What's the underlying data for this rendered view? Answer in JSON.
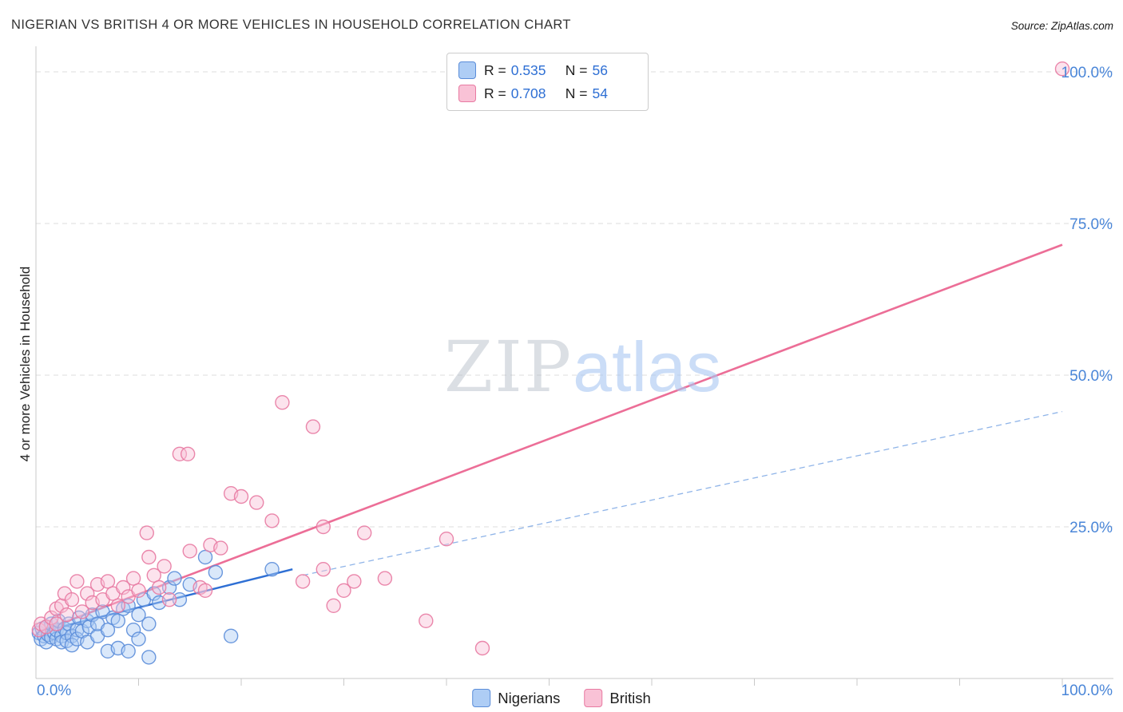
{
  "header": {
    "title": "NIGERIAN VS BRITISH 4 OR MORE VEHICLES IN HOUSEHOLD CORRELATION CHART",
    "source": "Source: ZipAtlas.com"
  },
  "watermark": {
    "zip": "ZIP",
    "atlas": "atlas"
  },
  "legend_box": {
    "rows": [
      {
        "r_label": "R =",
        "r_value": "0.535",
        "n_label": "N =",
        "n_value": "56"
      },
      {
        "r_label": "R =",
        "r_value": "0.708",
        "n_label": "N =",
        "n_value": "54"
      }
    ]
  },
  "axes": {
    "y_axis_title": "4 or more Vehicles in Household",
    "y_ticks": [
      {
        "pct": 100,
        "label": "100.0%"
      },
      {
        "pct": 75,
        "label": "75.0%"
      },
      {
        "pct": 50,
        "label": "50.0%"
      },
      {
        "pct": 25,
        "label": "25.0%"
      }
    ],
    "x_ticks": [
      {
        "pct": 0,
        "label": "0.0%",
        "anchor": "start"
      },
      {
        "pct": 100,
        "label": "100.0%",
        "anchor": "end"
      }
    ]
  },
  "bottom_legend": {
    "items": [
      {
        "label": "Nigerians"
      },
      {
        "label": "British"
      }
    ]
  },
  "chart_data": {
    "type": "scatter",
    "title": "NIGERIAN VS BRITISH 4 OR MORE VEHICLES IN HOUSEHOLD CORRELATION CHART",
    "xlabel": "",
    "ylabel": "4 or more Vehicles in Household",
    "xlim": [
      0,
      100
    ],
    "ylim": [
      0,
      105
    ],
    "grid_y": [
      25,
      50,
      75,
      100
    ],
    "x_minor_tick_step": 10,
    "legend_position": "bottom-center",
    "series": [
      {
        "name": "Nigerians",
        "R": 0.535,
        "N": 56,
        "fill": "#aecdf5",
        "stroke": "#5b8dd9",
        "points": [
          [
            0.3,
            7.5
          ],
          [
            0.5,
            6.5
          ],
          [
            0.6,
            8.2
          ],
          [
            0.8,
            7.0
          ],
          [
            1.0,
            6.0
          ],
          [
            1.0,
            8.5
          ],
          [
            1.2,
            7.2
          ],
          [
            1.5,
            6.8
          ],
          [
            1.5,
            9.0
          ],
          [
            1.8,
            7.5
          ],
          [
            2.0,
            6.5
          ],
          [
            2.0,
            8.0
          ],
          [
            2.2,
            9.5
          ],
          [
            2.5,
            7.0
          ],
          [
            2.5,
            6.0
          ],
          [
            2.8,
            8.2
          ],
          [
            3.0,
            7.5
          ],
          [
            3.0,
            6.2
          ],
          [
            3.2,
            9.0
          ],
          [
            3.5,
            7.0
          ],
          [
            3.5,
            5.5
          ],
          [
            4.0,
            8.0
          ],
          [
            4.0,
            6.5
          ],
          [
            4.2,
            10.0
          ],
          [
            4.5,
            7.8
          ],
          [
            5.0,
            9.5
          ],
          [
            5.0,
            6.0
          ],
          [
            5.2,
            8.5
          ],
          [
            5.5,
            10.5
          ],
          [
            6.0,
            7.0
          ],
          [
            6.0,
            9.0
          ],
          [
            6.5,
            11.0
          ],
          [
            7.0,
            4.5
          ],
          [
            7.0,
            8.0
          ],
          [
            7.5,
            10.0
          ],
          [
            8.0,
            5.0
          ],
          [
            8.0,
            9.5
          ],
          [
            8.5,
            11.5
          ],
          [
            9.0,
            4.5
          ],
          [
            9.0,
            12.0
          ],
          [
            9.5,
            8.0
          ],
          [
            10.0,
            10.5
          ],
          [
            10.0,
            6.5
          ],
          [
            10.5,
            13.0
          ],
          [
            11.0,
            3.5
          ],
          [
            11.0,
            9.0
          ],
          [
            11.5,
            14.0
          ],
          [
            12.0,
            12.5
          ],
          [
            13.0,
            15.0
          ],
          [
            13.5,
            16.5
          ],
          [
            14.0,
            13.0
          ],
          [
            15.0,
            15.5
          ],
          [
            16.5,
            20.0
          ],
          [
            17.5,
            17.5
          ],
          [
            19.0,
            7.0
          ],
          [
            23.0,
            18.0
          ]
        ]
      },
      {
        "name": "British",
        "R": 0.708,
        "N": 54,
        "fill": "#f9c2d6",
        "stroke": "#e87aa2",
        "points": [
          [
            0.3,
            8.0
          ],
          [
            0.5,
            9.0
          ],
          [
            1.0,
            8.5
          ],
          [
            1.5,
            10.0
          ],
          [
            2.0,
            9.0
          ],
          [
            2.0,
            11.5
          ],
          [
            2.5,
            12.0
          ],
          [
            2.8,
            14.0
          ],
          [
            3.0,
            10.5
          ],
          [
            3.5,
            13.0
          ],
          [
            4.0,
            16.0
          ],
          [
            4.5,
            11.0
          ],
          [
            5.0,
            14.0
          ],
          [
            5.5,
            12.5
          ],
          [
            6.0,
            15.5
          ],
          [
            6.5,
            13.0
          ],
          [
            7.0,
            16.0
          ],
          [
            7.5,
            14.0
          ],
          [
            8.0,
            12.0
          ],
          [
            8.5,
            15.0
          ],
          [
            9.0,
            13.5
          ],
          [
            9.5,
            16.5
          ],
          [
            10.0,
            14.5
          ],
          [
            10.8,
            24.0
          ],
          [
            11.0,
            20.0
          ],
          [
            11.5,
            17.0
          ],
          [
            12.0,
            15.0
          ],
          [
            12.5,
            18.5
          ],
          [
            13.0,
            13.0
          ],
          [
            14.0,
            37.0
          ],
          [
            14.8,
            37.0
          ],
          [
            15.0,
            21.0
          ],
          [
            16.0,
            15.0
          ],
          [
            16.5,
            14.5
          ],
          [
            17.0,
            22.0
          ],
          [
            18.0,
            21.5
          ],
          [
            19.0,
            30.5
          ],
          [
            20.0,
            30.0
          ],
          [
            21.5,
            29.0
          ],
          [
            23.0,
            26.0
          ],
          [
            24.0,
            45.5
          ],
          [
            26.0,
            16.0
          ],
          [
            27.0,
            41.5
          ],
          [
            28.0,
            25.0
          ],
          [
            28.0,
            18.0
          ],
          [
            29.0,
            12.0
          ],
          [
            30.0,
            14.5
          ],
          [
            31.0,
            16.0
          ],
          [
            32.0,
            24.0
          ],
          [
            34.0,
            16.5
          ],
          [
            38.0,
            9.5
          ],
          [
            40.0,
            23.0
          ],
          [
            43.5,
            5.0
          ],
          [
            100.0,
            100.5
          ]
        ]
      }
    ],
    "trends": [
      {
        "series": "Nigerians",
        "x1": 0,
        "y1": 7.5,
        "x2": 25,
        "y2": 18,
        "dash": false,
        "color": "#2e6fd4",
        "width": 2.4
      },
      {
        "series": "Nigerians",
        "x1": 26,
        "y1": 17,
        "x2": 100,
        "y2": 44,
        "dash": true,
        "color": "#8fb4e8",
        "width": 1.3
      },
      {
        "series": "British",
        "x1": 0,
        "y1": 7.5,
        "x2": 100,
        "y2": 71.5,
        "dash": false,
        "color": "#ec6e97",
        "width": 2.6
      }
    ],
    "colors": {
      "tick_label_blue": "#4a86d8",
      "grid": "#dcdcdc",
      "axis": "#c9c9c9"
    }
  }
}
